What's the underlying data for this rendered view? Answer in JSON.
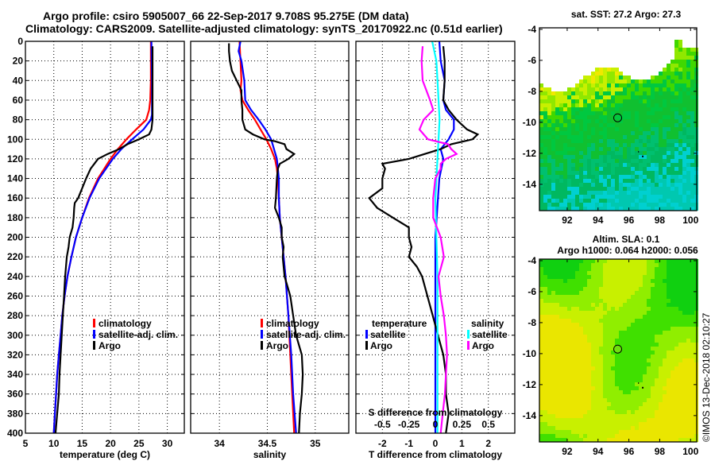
{
  "header": {
    "line1": "Argo profile: csiro 5905007_66 22-Sep-2017 9.708S 95.275E (DM data)",
    "line2": "Climatology: CARS2009. Satellite-adjusted climatology: synTS_20170922.nc (0.51d earlier)"
  },
  "credit": "©IMOS 13-Dec-2018 02:10:27",
  "chart_data": [
    {
      "type": "line",
      "id": "temperature",
      "xlabel": "temperature (deg C)",
      "ylabel": "",
      "xlim": [
        5,
        33
      ],
      "ylim": [
        400,
        0
      ],
      "xticks": [
        5,
        10,
        15,
        20,
        25,
        30
      ],
      "yticks": [
        0,
        20,
        40,
        60,
        80,
        100,
        120,
        140,
        160,
        180,
        200,
        220,
        240,
        260,
        280,
        300,
        320,
        340,
        360,
        380,
        400
      ],
      "grid": true,
      "legend": {
        "placement": "right-middle",
        "entries": [
          "climatology",
          "satellite-adj. clim.",
          "Argo"
        ]
      },
      "series": [
        {
          "name": "climatology",
          "color": "#ff0000",
          "depth": [
            0,
            40,
            60,
            70,
            80,
            90,
            100,
            110,
            120,
            130,
            140,
            160,
            180,
            200,
            220,
            240,
            260,
            280,
            300,
            320,
            340,
            360,
            380,
            400
          ],
          "values": [
            27.1,
            27.1,
            27.0,
            26.8,
            26.3,
            24.5,
            22.8,
            21.3,
            20.0,
            18.9,
            17.8,
            16.2,
            15.0,
            13.9,
            13.1,
            12.4,
            11.9,
            11.5,
            11.2,
            10.9,
            10.6,
            10.4,
            10.2,
            10.0
          ]
        },
        {
          "name": "satellite-adj. clim.",
          "color": "#0000ff",
          "depth": [
            0,
            40,
            60,
            75,
            80,
            90,
            100,
            110,
            120,
            130,
            140,
            160,
            180,
            200,
            220,
            240,
            260,
            280,
            300,
            320,
            340,
            360,
            380,
            400
          ],
          "values": [
            27.2,
            27.3,
            27.3,
            27.3,
            27.1,
            25.8,
            23.8,
            21.9,
            20.4,
            19.2,
            18.0,
            16.3,
            15.0,
            13.9,
            13.1,
            12.4,
            11.9,
            11.5,
            11.2,
            10.9,
            10.6,
            10.4,
            10.2,
            10.0
          ]
        },
        {
          "name": "Argo",
          "color": "#000000",
          "depth": [
            5,
            40,
            60,
            80,
            90,
            95,
            100,
            105,
            110,
            115,
            120,
            130,
            140,
            150,
            160,
            165,
            170,
            180,
            190,
            200,
            210,
            220,
            240,
            260,
            280,
            300,
            320,
            340,
            360,
            380,
            400
          ],
          "values": [
            27.4,
            27.4,
            27.4,
            27.4,
            27.2,
            26.8,
            25.0,
            23.0,
            21.5,
            19.5,
            17.8,
            16.5,
            15.7,
            15.0,
            14.3,
            13.7,
            13.6,
            13.5,
            13.3,
            12.8,
            12.6,
            12.3,
            12.0,
            11.8,
            11.6,
            11.4,
            11.2,
            11.0,
            10.9,
            10.6,
            10.3
          ]
        }
      ]
    },
    {
      "type": "line",
      "id": "salinity",
      "xlabel": "salinity",
      "ylabel": "",
      "xlim": [
        33.7,
        35.35
      ],
      "ylim": [
        400,
        0
      ],
      "xticks": [
        34,
        34.5,
        35
      ],
      "yticks": [
        0,
        20,
        40,
        60,
        80,
        100,
        120,
        140,
        160,
        180,
        200,
        220,
        240,
        260,
        280,
        300,
        320,
        340,
        360,
        380,
        400
      ],
      "grid": true,
      "legend": {
        "placement": "right-middle",
        "entries": [
          "climatology",
          "satellite-adj. clim.",
          "Argo"
        ]
      },
      "series": [
        {
          "name": "climatology",
          "color": "#ff0000",
          "depth": [
            0,
            20,
            40,
            50,
            60,
            70,
            80,
            90,
            100,
            110,
            120,
            130,
            140,
            160,
            180,
            200,
            240,
            280,
            320,
            360,
            400
          ],
          "values": [
            34.21,
            34.22,
            34.23,
            34.22,
            34.24,
            34.3,
            34.37,
            34.43,
            34.49,
            34.54,
            34.58,
            34.6,
            34.61,
            34.62,
            34.63,
            34.65,
            34.69,
            34.72,
            34.74,
            34.76,
            34.78
          ]
        },
        {
          "name": "satellite-adj. clim.",
          "color": "#0000ff",
          "depth": [
            0,
            10,
            20,
            40,
            60,
            70,
            80,
            90,
            100,
            110,
            120,
            130,
            140,
            160,
            180,
            200,
            240,
            280,
            320,
            360,
            400
          ],
          "values": [
            34.22,
            34.2,
            34.23,
            34.26,
            34.27,
            34.33,
            34.41,
            34.48,
            34.54,
            34.57,
            34.6,
            34.61,
            34.62,
            34.62,
            34.63,
            34.65,
            34.69,
            34.72,
            34.75,
            34.77,
            34.8
          ]
        },
        {
          "name": "Argo",
          "color": "#000000",
          "depth": [
            2,
            10,
            20,
            30,
            40,
            50,
            60,
            70,
            80,
            90,
            95,
            100,
            102,
            105,
            110,
            115,
            120,
            125,
            130,
            140,
            160,
            170,
            180,
            190,
            200,
            210,
            220,
            240,
            260,
            280,
            300,
            320,
            340,
            360,
            380,
            400
          ],
          "values": [
            34.1,
            34.1,
            34.11,
            34.13,
            34.18,
            34.23,
            34.23,
            34.24,
            34.24,
            34.27,
            34.35,
            34.47,
            34.58,
            34.68,
            34.7,
            34.78,
            34.72,
            34.63,
            34.61,
            34.6,
            34.59,
            34.58,
            34.62,
            34.65,
            34.65,
            34.67,
            34.66,
            34.68,
            34.74,
            34.77,
            34.8,
            34.86,
            34.87,
            34.86,
            34.84,
            34.83
          ]
        }
      ]
    },
    {
      "type": "line",
      "id": "difference",
      "xlabel": "T difference from climatology",
      "xlabel_top": "S difference from climatology",
      "xlim": [
        -3,
        3
      ],
      "ylim": [
        400,
        0
      ],
      "xticks": [
        -2,
        -1,
        0,
        1,
        2
      ],
      "xticks_S": [
        -0.5,
        -0.25,
        0,
        0.25,
        0.5
      ],
      "yticks": [
        0,
        20,
        40,
        60,
        80,
        100,
        120,
        140,
        160,
        180,
        200,
        220,
        240,
        260,
        280,
        300,
        320,
        340,
        360,
        380,
        400
      ],
      "grid": true,
      "legend": {
        "placement": "bottom-middle",
        "temperature_title": "temperature",
        "salinity_title": "salinity",
        "entries": [
          "satellite",
          "Argo",
          "satellite",
          "Argo"
        ]
      },
      "series": [
        {
          "name": "T satellite",
          "color": "#0000ff",
          "depth": [
            0,
            20,
            40,
            60,
            70,
            80,
            90,
            100,
            110,
            120,
            140,
            160,
            180,
            200,
            240,
            280,
            320,
            360,
            400
          ],
          "values": [
            0.15,
            0.2,
            0.35,
            0.3,
            0.4,
            0.7,
            0.7,
            0.5,
            0.2,
            0.3,
            0.15,
            0.1,
            0.05,
            0.0,
            0.0,
            0.0,
            0.0,
            0.0,
            0.0
          ]
        },
        {
          "name": "T Argo",
          "color": "#000000",
          "depth": [
            5,
            20,
            40,
            60,
            70,
            80,
            85,
            90,
            95,
            100,
            105,
            110,
            115,
            120,
            125,
            130,
            140,
            150,
            160,
            170,
            180,
            190,
            200,
            210,
            220,
            230,
            240,
            260,
            280,
            300,
            320,
            340,
            360,
            380,
            400
          ],
          "values": [
            0.3,
            0.35,
            0.35,
            0.3,
            0.5,
            0.8,
            1.0,
            1.2,
            1.6,
            1.4,
            0.6,
            0.2,
            -0.4,
            -1.0,
            -2.0,
            -1.9,
            -2.0,
            -2.0,
            -2.5,
            -2.2,
            -1.6,
            -1.0,
            -1.0,
            -0.9,
            -1.0,
            -0.7,
            -0.5,
            -0.3,
            -0.1,
            0.1,
            0.3,
            0.4,
            0.4,
            0.5,
            0.4
          ]
        },
        {
          "name": "S satellite",
          "color": "#00ffff",
          "depth": [
            0,
            20,
            40,
            60,
            80,
            100,
            120,
            140,
            160,
            200,
            240,
            280,
            320,
            360,
            400
          ],
          "values": [
            -0.03,
            0.01,
            0.02,
            0.03,
            0.04,
            0.03,
            0.02,
            0.01,
            0.0,
            0.01,
            0.02,
            0.02,
            0.02,
            0.02,
            0.02
          ]
        },
        {
          "name": "S Argo",
          "color": "#ff00ff",
          "depth": [
            5,
            20,
            40,
            60,
            70,
            80,
            90,
            100,
            105,
            110,
            115,
            120,
            125,
            130,
            140,
            160,
            180,
            200,
            220,
            240,
            260,
            280,
            300,
            320,
            340,
            360,
            380,
            400
          ],
          "values": [
            -0.12,
            -0.13,
            -0.12,
            -0.05,
            -0.02,
            -0.11,
            -0.15,
            -0.07,
            0.12,
            0.15,
            0.2,
            0.1,
            0.05,
            0.05,
            0.0,
            -0.02,
            -0.02,
            0.05,
            0.08,
            0.03,
            0.05,
            0.08,
            0.1,
            0.11,
            0.1,
            0.09,
            0.07,
            0.05
          ]
        }
      ]
    },
    {
      "type": "heatmap",
      "id": "sst-map",
      "title": "sat. SST: 27.2 Argo: 27.3",
      "xlim": [
        90.2,
        100.4
      ],
      "ylim": [
        -15.7,
        -3.9
      ],
      "xticks": [
        92,
        94,
        96,
        98,
        100
      ],
      "yticks": [
        -4,
        -6,
        -8,
        -10,
        -12,
        -14
      ],
      "marker": {
        "lon": 95.275,
        "lat": -9.708
      }
    },
    {
      "type": "heatmap",
      "id": "sla-map",
      "title": "Altim. SLA: 0.1",
      "subtitle": "Argo h1000: 0.064 h2000: 0.056",
      "xlim": [
        90.2,
        100.4
      ],
      "ylim": [
        -15.7,
        -3.9
      ],
      "xticks": [
        92,
        94,
        96,
        98,
        100
      ],
      "yticks": [
        -4,
        -6,
        -8,
        -10,
        -12,
        -14
      ],
      "marker": {
        "lon": 95.275,
        "lat": -9.708
      }
    }
  ]
}
